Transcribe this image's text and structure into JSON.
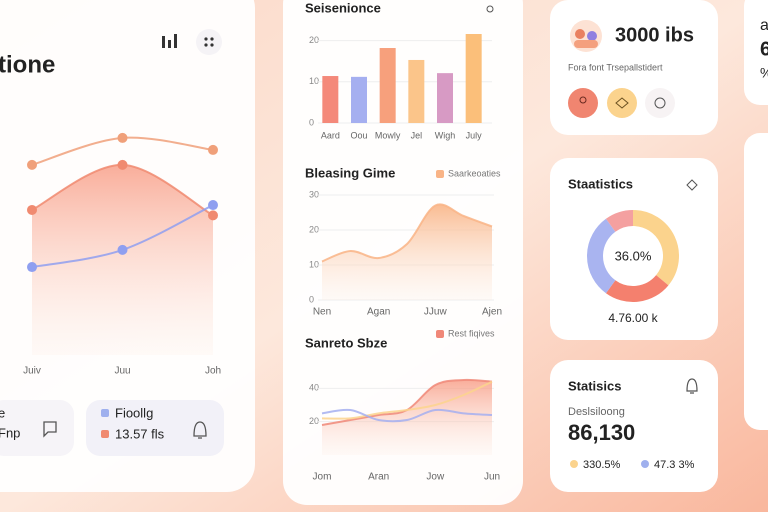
{
  "chart_data": [
    {
      "type": "line",
      "title": "tione",
      "categories": [
        "Juiv",
        "Juu",
        "Joh"
      ],
      "ylim": [
        0,
        100
      ],
      "series": [
        {
          "color": "#f0a07a",
          "values": [
            77.6,
            88.6,
            83.7
          ]
        },
        {
          "color": "#f08a70",
          "area": true,
          "values": [
            59.2,
            77.6,
            57
          ]
        },
        {
          "color": "#8f9ff0",
          "values": [
            35.9,
            42.9,
            61.2
          ]
        }
      ]
    },
    {
      "type": "bar",
      "title": "Seisenionce",
      "categories": [
        "Aard",
        "Oou",
        "Mowly",
        "Jel",
        "Wigh",
        "July"
      ],
      "values": [
        11.4,
        11.2,
        18.2,
        15.3,
        12.1,
        21.6
      ],
      "colors": [
        "#f4897a",
        "#a5aff0",
        "#f7a07c",
        "#fbc58a",
        "#d79ac4",
        "#fbbf7a"
      ],
      "ylim": [
        0,
        25
      ],
      "yticks": [
        0,
        10,
        20
      ],
      "grid": true
    },
    {
      "type": "area",
      "title": "Bleasing Gime",
      "categories": [
        "Nen",
        null,
        "Agan",
        null,
        "JJuw",
        null,
        "Ajen"
      ],
      "series": [
        {
          "name": "Saarkeoaties",
          "color": "#f9b486",
          "values": [
            11,
            14,
            12,
            16,
            27,
            24,
            21
          ]
        }
      ],
      "ylim": [
        0,
        30
      ],
      "yticks": [
        0,
        10,
        20,
        30
      ],
      "grid": true
    },
    {
      "type": "line",
      "title": "Sanreto Sbze",
      "categories": [
        "Jom",
        null,
        "Aran",
        null,
        "Jow",
        null,
        "Jun"
      ],
      "series": [
        {
          "name": "Rest fiqives",
          "color": "#f08878",
          "area": true,
          "values": [
            18,
            21,
            24,
            27,
            42,
            45,
            44
          ]
        },
        {
          "color": "#fbd38d",
          "values": [
            22,
            22,
            25,
            27,
            30,
            36,
            44
          ]
        },
        {
          "color": "#a5aff0",
          "values": [
            25,
            27,
            21,
            21,
            27,
            25,
            24
          ]
        }
      ],
      "ylim": [
        0,
        60
      ],
      "yticks": [
        20,
        40
      ],
      "grid": true
    },
    {
      "type": "donut",
      "title": "Staatistics",
      "center_label": "36.0%",
      "total_label": "4.76.00 k",
      "values": [
        36,
        24,
        30,
        10
      ],
      "colors": [
        "#fbd38d",
        "#f4806e",
        "#a9b4f0",
        "#f4a0a0"
      ]
    }
  ],
  "left_panel": {
    "partial_card": [
      "e",
      "Fnp"
    ],
    "legend": [
      "Fioollg",
      "13.57 fls"
    ]
  },
  "profile_card": {
    "value": "3000 ibs",
    "subtitle": "Fora font Trsepallstidert"
  },
  "stats_card": {
    "title": "Statisics",
    "label": "Deslsiloong",
    "value": "86,130",
    "legend": [
      "330.5%",
      "47.3 3%"
    ]
  },
  "edge_card": [
    "a",
    "6",
    "%"
  ]
}
